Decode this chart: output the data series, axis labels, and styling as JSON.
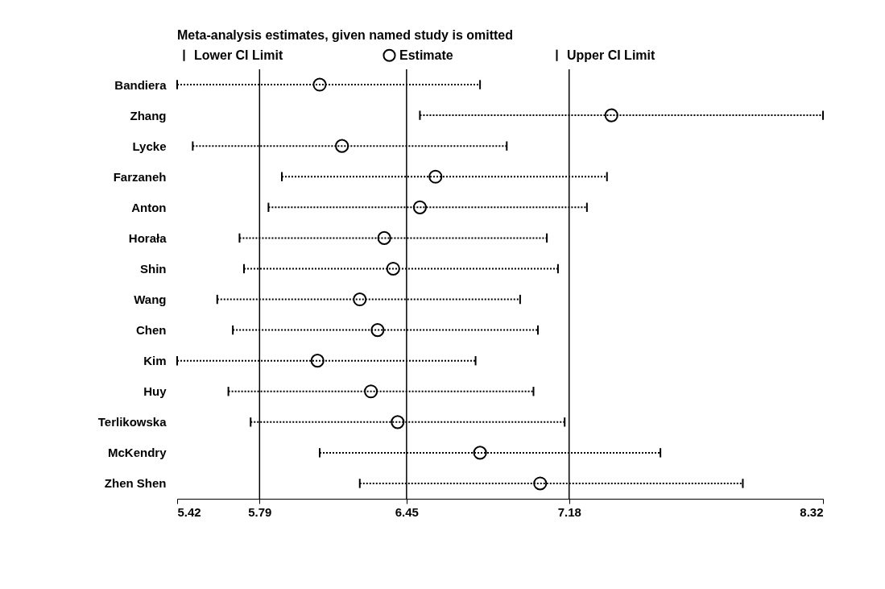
{
  "chart_data": {
    "type": "scatter",
    "orientation": "horizontal",
    "title": "Meta-analysis estimates, given named study is omitted",
    "categories": [
      "Bandiera",
      "Zhang",
      "Lycke",
      "Farzaneh",
      "Anton",
      "Horała",
      "Shin",
      "Wang",
      "Chen",
      "Kim",
      "Huy",
      "Terlikowska",
      "McKendry",
      "Zhen Shen"
    ],
    "series": [
      {
        "name": "Estimate",
        "color": "#000000",
        "values": [
          6.06,
          7.37,
          6.16,
          6.58,
          6.51,
          6.35,
          6.39,
          6.24,
          6.32,
          6.05,
          6.29,
          6.41,
          6.78,
          7.05
        ],
        "errors": [
          [
            5.42,
            6.78
          ],
          [
            6.51,
            8.32
          ],
          [
            5.49,
            6.9
          ],
          [
            5.89,
            7.35
          ],
          [
            5.83,
            7.26
          ],
          [
            5.7,
            7.08
          ],
          [
            5.72,
            7.13
          ],
          [
            5.6,
            6.96
          ],
          [
            5.67,
            7.04
          ],
          [
            5.42,
            6.76
          ],
          [
            5.65,
            7.02
          ],
          [
            5.75,
            7.16
          ],
          [
            6.06,
            7.59
          ],
          [
            6.24,
            7.96
          ]
        ]
      }
    ],
    "annotations": [
      "Lower CI Limit",
      "Upper CI Limit"
    ],
    "xlim": [
      5.42,
      8.32
    ],
    "xticks": [
      5.42,
      5.79,
      6.45,
      7.18,
      8.32
    ],
    "ref_lines": [
      {
        "axis": "x",
        "value": 5.79
      },
      {
        "axis": "x",
        "value": 6.45
      },
      {
        "axis": "x",
        "value": 7.18
      }
    ],
    "marker": "circle",
    "line_style": "dotted",
    "legend": "top",
    "grid": false
  }
}
